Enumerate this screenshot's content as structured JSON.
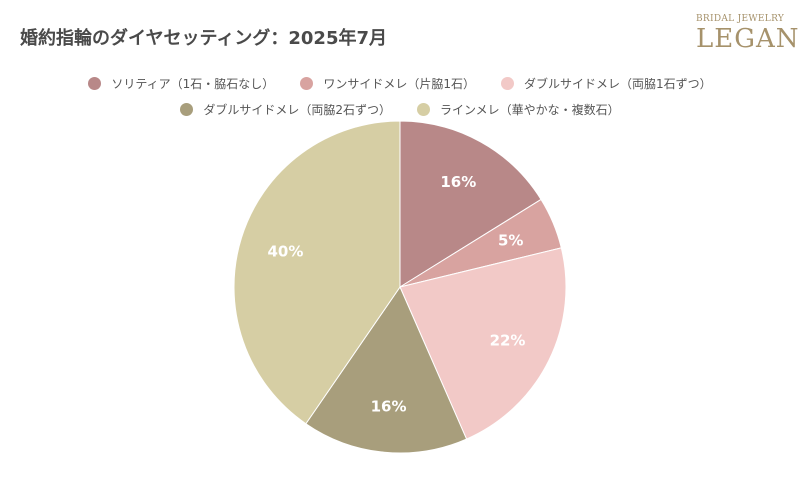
{
  "page": {
    "title": "婚約指輪のダイヤセッティング：2025年7月"
  },
  "brand": {
    "top_text": "BRIDAL JEWELRY",
    "main_text": "LEGAN"
  },
  "chart_data": {
    "type": "pie",
    "title": "婚約指輪のダイヤセッティング：2025年7月",
    "legend_position": "top",
    "slices": [
      {
        "name": "ソリティア（1石・脇石なし）",
        "value": 16,
        "label": "16%",
        "color": "#b88888"
      },
      {
        "name": "ワンサイドメレ（片脇1石）",
        "value": 5,
        "label": "5%",
        "color": "#d8a3a0"
      },
      {
        "name": "ダブルサイドメレ（両脇1石ずつ）",
        "value": 22,
        "label": "22%",
        "color": "#f2c9c7"
      },
      {
        "name": "ダブルサイドメレ（両脇2石ずつ）",
        "value": 16,
        "label": "16%",
        "color": "#a89e7c"
      },
      {
        "name": "ラインメレ（華やかな・複数石）",
        "value": 40,
        "label": "40%",
        "color": "#d6cea4"
      }
    ]
  }
}
